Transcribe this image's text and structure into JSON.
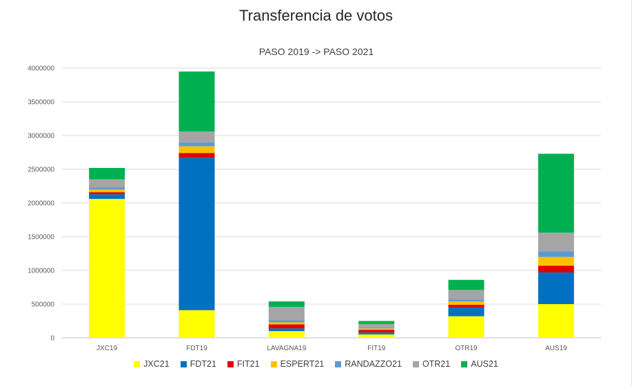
{
  "page": {
    "title": "Transferencia de votos"
  },
  "chart_data": {
    "type": "bar",
    "stacked": true,
    "title": "PASO 2019 -> PASO 2021",
    "xlabel": "",
    "ylabel": "",
    "ylim": [
      0,
      4000000
    ],
    "yticks": [
      0,
      500000,
      1000000,
      1500000,
      2000000,
      2500000,
      3000000,
      3500000,
      4000000
    ],
    "ytick_labels": [
      "0",
      "500000",
      "1000000",
      "1500000",
      "2000000",
      "2500000",
      "3000000",
      "3500000",
      "4000000"
    ],
    "grid": true,
    "legend_position": "bottom",
    "categories": [
      "JXC19",
      "FDT19",
      "LAVAGNA19",
      "FIT19",
      "OTR19",
      "AUS19"
    ],
    "series": [
      {
        "name": "JXC21",
        "color": "#ffff00",
        "values": [
          2060000,
          410000,
          100000,
          50000,
          320000,
          500000
        ]
      },
      {
        "name": "FDT21",
        "color": "#0070c0",
        "values": [
          70000,
          2260000,
          40000,
          30000,
          130000,
          470000
        ]
      },
      {
        "name": "FIT21",
        "color": "#e00000",
        "values": [
          30000,
          70000,
          60000,
          40000,
          40000,
          100000
        ]
      },
      {
        "name": "ESPERT21",
        "color": "#ffc000",
        "values": [
          40000,
          100000,
          30000,
          20000,
          50000,
          130000
        ]
      },
      {
        "name": "RANDAZZO21",
        "color": "#5b9bd5",
        "values": [
          30000,
          60000,
          30000,
          15000,
          30000,
          80000
        ]
      },
      {
        "name": "OTR21",
        "color": "#a5a5a5",
        "values": [
          120000,
          160000,
          200000,
          50000,
          140000,
          280000
        ]
      },
      {
        "name": "AUS21",
        "color": "#00b050",
        "values": [
          170000,
          890000,
          80000,
          45000,
          150000,
          1170000
        ]
      }
    ]
  }
}
